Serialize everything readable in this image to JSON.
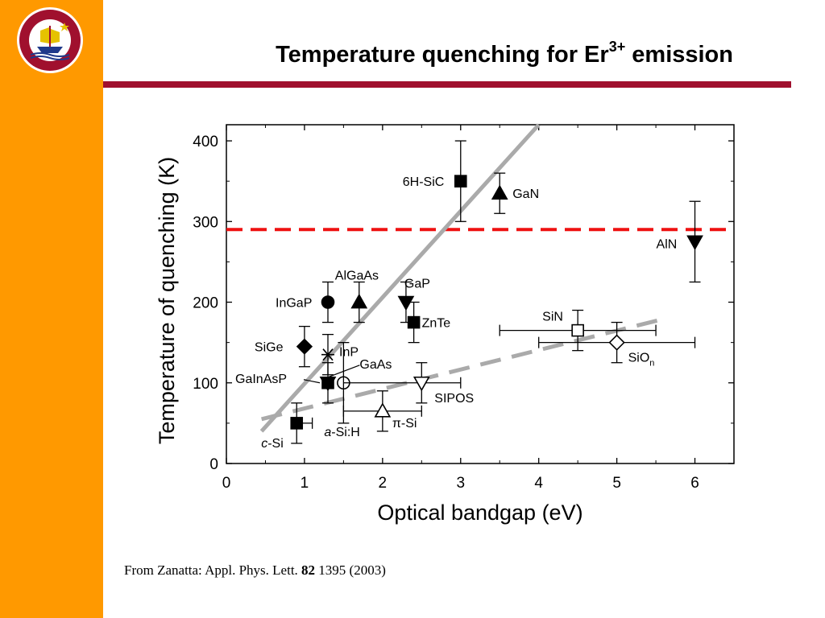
{
  "slide": {
    "title_main": "Temperature quenching for Er",
    "title_sup": "3+",
    "title_end": " emission",
    "citation_pre": "From Zanatta: Appl. Phys. Lett. ",
    "citation_bold": "82",
    "citation_post": " 1395 (2003)",
    "colors": {
      "sidebar": "#ff9900",
      "rule": "#a0102e",
      "logo": "#a0102e"
    }
  },
  "logo": {
    "text": "ET LVX IN TENEBRIS LVCET",
    "year": "MCMXVII"
  },
  "chart_data": {
    "type": "scatter",
    "xlabel": "Optical bandgap (eV)",
    "ylabel": "Temperature of quenching (K)",
    "xlim": [
      0,
      6.5
    ],
    "ylim": [
      0,
      420
    ],
    "xticks": [
      0,
      1,
      2,
      3,
      4,
      5,
      6
    ],
    "yticks": [
      0,
      100,
      200,
      300,
      400
    ],
    "points": [
      {
        "label": "c-Si",
        "x": 0.9,
        "y": 50,
        "marker": "square",
        "filled": true,
        "yerr": [
          25,
          75
        ],
        "xerr": [
          0.9,
          1.1
        ]
      },
      {
        "label": "SiGe",
        "x": 1.0,
        "y": 145,
        "marker": "diamond",
        "filled": true,
        "yerr": [
          120,
          170
        ]
      },
      {
        "label": "InGaP",
        "x": 1.3,
        "y": 200,
        "marker": "circle",
        "filled": true,
        "yerr": [
          175,
          225
        ]
      },
      {
        "label": "AlGaAs",
        "x": 1.7,
        "y": 200,
        "marker": "triangle-up",
        "filled": true,
        "yerr": [
          175,
          225
        ]
      },
      {
        "label": "InP",
        "x": 1.3,
        "y": 135,
        "marker": "star",
        "filled": true,
        "yerr": [
          110,
          160
        ]
      },
      {
        "label": "GaInAsP",
        "x": 1.3,
        "y": 100,
        "marker": "square",
        "filled": true,
        "yerr": [
          75,
          125
        ]
      },
      {
        "label": "",
        "x": 1.3,
        "y": 100,
        "marker": "triangle-down",
        "filled": true
      },
      {
        "label": "GaAs",
        "x": 1.5,
        "y": 100,
        "marker": "circle",
        "filled": false,
        "yerr": [
          50,
          150
        ]
      },
      {
        "label": "a-Si:H",
        "x": 1.5,
        "y": 100,
        "marker": "none"
      },
      {
        "label": "π-Si",
        "x": 2.0,
        "y": 65,
        "marker": "triangle-up",
        "filled": false,
        "yerr": [
          40,
          90
        ],
        "xerr": [
          1.5,
          2.5
        ]
      },
      {
        "label": "SIPOS",
        "x": 2.5,
        "y": 100,
        "marker": "triangle-down",
        "filled": false,
        "yerr": [
          75,
          125
        ],
        "xerr": [
          1.5,
          3.0
        ]
      },
      {
        "label": "GaP",
        "x": 2.3,
        "y": 200,
        "marker": "triangle-down",
        "filled": true,
        "yerr": [
          175,
          225
        ]
      },
      {
        "label": "ZnTe",
        "x": 2.4,
        "y": 175,
        "marker": "square",
        "filled": true,
        "yerr": [
          150,
          200
        ]
      },
      {
        "label": "6H-SiC",
        "x": 3.0,
        "y": 350,
        "marker": "square",
        "filled": true,
        "yerr": [
          300,
          400
        ]
      },
      {
        "label": "GaN",
        "x": 3.5,
        "y": 335,
        "marker": "triangle-up",
        "filled": true,
        "yerr": [
          310,
          360
        ]
      },
      {
        "label": "AlN",
        "x": 6.0,
        "y": 275,
        "marker": "triangle-down",
        "filled": true,
        "yerr": [
          225,
          325
        ]
      },
      {
        "label": "SiN",
        "x": 4.5,
        "y": 165,
        "marker": "square",
        "filled": false,
        "yerr": [
          140,
          190
        ],
        "xerr": [
          3.5,
          5.5
        ]
      },
      {
        "label": "SiO",
        "label_sub": "n",
        "x": 5.0,
        "y": 150,
        "marker": "diamond",
        "filled": false,
        "yerr": [
          125,
          175
        ],
        "xerr": [
          4.0,
          6.0
        ]
      }
    ],
    "reference_lines": [
      {
        "style": "dashed",
        "color": "#ee1111",
        "x": [
          0,
          6.5
        ],
        "y": [
          290,
          290
        ]
      },
      {
        "style": "solid",
        "color": "#aaaaaa",
        "x": [
          0.45,
          4.0
        ],
        "y": [
          40,
          420
        ]
      },
      {
        "style": "dashed",
        "color": "#aaaaaa",
        "x": [
          0.45,
          5.55
        ],
        "y": [
          55,
          178
        ]
      }
    ]
  }
}
